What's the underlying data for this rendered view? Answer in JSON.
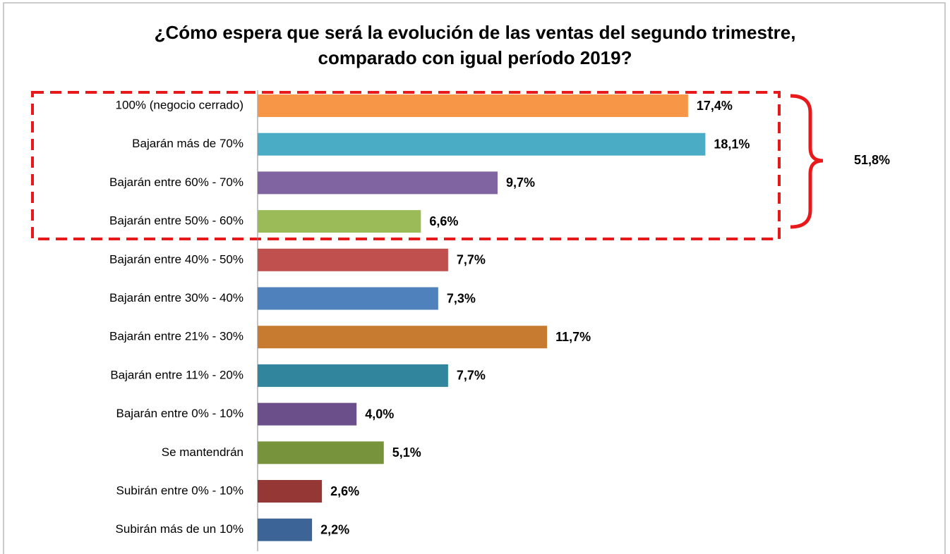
{
  "chart_data": {
    "type": "bar",
    "orientation": "horizontal",
    "title": [
      "¿Cómo espera que será la evolución de las ventas del segundo trimestre,",
      "comparado con igual período 2019?"
    ],
    "categories": [
      "100% (negocio cerrado)",
      "Bajarán más de 70%",
      "Bajarán entre 60% - 70%",
      "Bajarán entre 50% - 60%",
      "Bajarán entre 40% - 50%",
      "Bajarán entre 30% - 40%",
      "Bajarán entre 21% - 30%",
      "Bajarán entre 11% - 20%",
      "Bajarán entre 0% - 10%",
      "Se mantendrán",
      "Subirán entre 0% - 10%",
      "Subirán más de un 10%"
    ],
    "values": [
      17.4,
      18.1,
      9.7,
      6.6,
      7.7,
      7.3,
      11.7,
      7.7,
      4.0,
      5.1,
      2.6,
      2.2
    ],
    "value_labels": [
      "17,4%",
      "18,1%",
      "9,7%",
      "6,6%",
      "7,7%",
      "7,3%",
      "11,7%",
      "7,7%",
      "4,0%",
      "5,1%",
      "2,6%",
      "2,2%"
    ],
    "colors": [
      "#f79646",
      "#4bacc6",
      "#8064a2",
      "#9bbb59",
      "#c0504d",
      "#4f81bd",
      "#c77b30",
      "#31859c",
      "#6b4f8a",
      "#77933c",
      "#953735",
      "#3c6496"
    ],
    "xlim": [
      0,
      20
    ],
    "annotation": "51,8%"
  }
}
